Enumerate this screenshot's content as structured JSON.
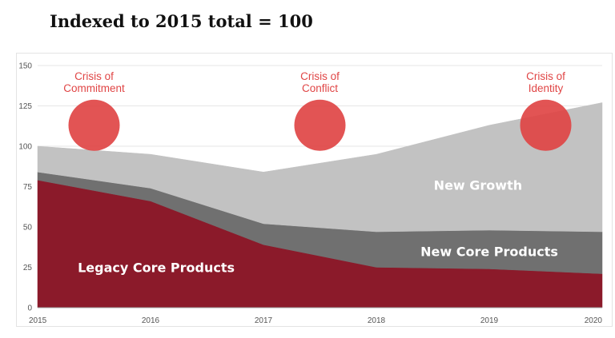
{
  "chart_data": {
    "type": "area",
    "stacked": true,
    "title": "Indexed to 2015 total = 100",
    "x": [
      "2015",
      "2016",
      "2017",
      "2018",
      "2019",
      "2020"
    ],
    "ylim": [
      0,
      150
    ],
    "yticks": [
      "0",
      "25",
      "50",
      "75",
      "100",
      "125",
      "150"
    ],
    "grid": true,
    "series": [
      {
        "name": "Legacy Core Products",
        "values": [
          79,
          66,
          39,
          25,
          24,
          21
        ],
        "color": "#8b1a2a"
      },
      {
        "name": "New Core Products",
        "values": [
          5,
          8,
          13,
          22,
          24,
          26
        ],
        "color": "#707070"
      },
      {
        "name": "New Growth",
        "values": [
          16,
          21,
          32,
          48,
          65,
          80
        ],
        "color": "#c2c2c2"
      }
    ],
    "area_labels": [
      {
        "series": "Legacy Core Products",
        "text": "Legacy Core Products",
        "x": 2016.05,
        "y": 25
      },
      {
        "series": "New Core Products",
        "text": "New Core Products",
        "x": 2019.0,
        "y": 35
      },
      {
        "series": "New Growth",
        "text": "New Growth",
        "x": 2018.9,
        "y": 76
      }
    ],
    "annotations": [
      {
        "lines": [
          "Crisis of",
          "Commitment"
        ],
        "x": 2015.5,
        "y": 113,
        "color": "#e04545"
      },
      {
        "lines": [
          "Crisis of",
          "Conflict"
        ],
        "x": 2017.5,
        "y": 113,
        "color": "#e04545"
      },
      {
        "lines": [
          "Crisis of",
          "Identity"
        ],
        "x": 2019.5,
        "y": 113,
        "color": "#e04545"
      }
    ]
  }
}
